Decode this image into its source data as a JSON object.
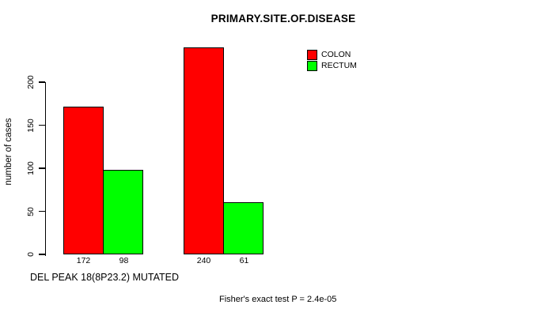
{
  "chart_data": {
    "type": "bar",
    "title": "PRIMARY.SITE.OF.DISEASE",
    "ylabel": "number of cases",
    "xlabel": "DEL PEAK 18(8P23.2) MUTATED",
    "annotation": "Fisher's exact test P = 2.4e-05",
    "series": [
      {
        "name": "COLON",
        "color": "#ff0000",
        "values": [
          172,
          240
        ]
      },
      {
        "name": "RECTUM",
        "color": "#00ff00",
        "values": [
          98,
          61
        ]
      }
    ],
    "group_count": 2,
    "yticks": [
      0,
      50,
      100,
      150,
      200
    ],
    "ylim": [
      0,
      200
    ],
    "show_value_labels": true,
    "bar_border_color": "#000000",
    "background_color": "#ffffff",
    "text_color": "#000000",
    "legend_position": "top-right",
    "grid": false
  }
}
